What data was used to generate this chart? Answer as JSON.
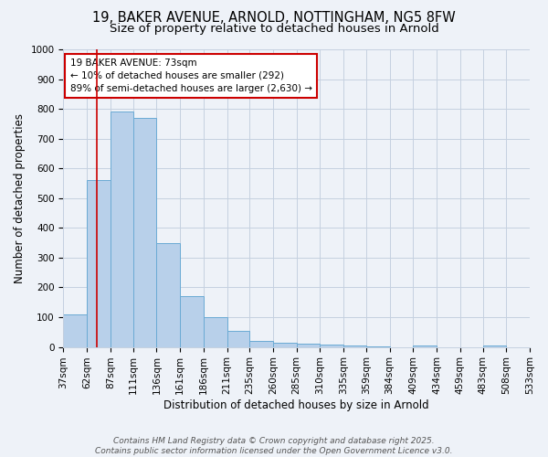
{
  "title_line1": "19, BAKER AVENUE, ARNOLD, NOTTINGHAM, NG5 8FW",
  "title_line2": "Size of property relative to detached houses in Arnold",
  "xlabel": "Distribution of detached houses by size in Arnold",
  "ylabel": "Number of detached properties",
  "bin_edges": [
    37,
    62,
    87,
    111,
    136,
    161,
    186,
    211,
    235,
    260,
    285,
    310,
    335,
    359,
    384,
    409,
    434,
    459,
    483,
    508,
    533
  ],
  "bar_heights": [
    110,
    560,
    790,
    770,
    350,
    170,
    100,
    55,
    20,
    15,
    10,
    8,
    5,
    3,
    0,
    5,
    0,
    0,
    5,
    0
  ],
  "bar_color": "#b8d0ea",
  "bar_edge_color": "#6aaad4",
  "property_size": 73,
  "vline_color": "#cc0000",
  "annotation_text": "19 BAKER AVENUE: 73sqm\n← 10% of detached houses are smaller (292)\n89% of semi-detached houses are larger (2,630) →",
  "annotation_box_color": "#ffffff",
  "annotation_box_edge": "#cc0000",
  "ylim": [
    0,
    1000
  ],
  "yticks": [
    0,
    100,
    200,
    300,
    400,
    500,
    600,
    700,
    800,
    900,
    1000
  ],
  "background_color": "#eef2f8",
  "grid_color": "#c5d0e0",
  "footer_line1": "Contains HM Land Registry data © Crown copyright and database right 2025.",
  "footer_line2": "Contains public sector information licensed under the Open Government Licence v3.0.",
  "title_fontsize": 10.5,
  "subtitle_fontsize": 9.5,
  "axis_label_fontsize": 8.5,
  "tick_fontsize": 7.5,
  "annotation_fontsize": 7.5,
  "footer_fontsize": 6.5
}
